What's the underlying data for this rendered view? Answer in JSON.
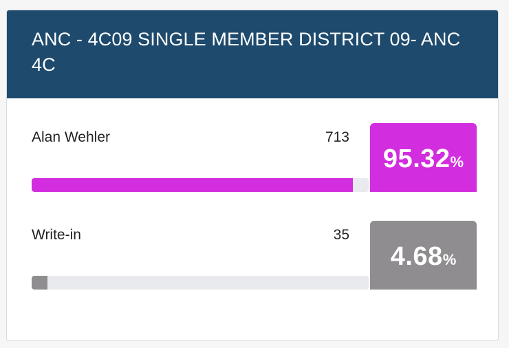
{
  "race": {
    "title": "ANC - 4C09 SINGLE MEMBER DISTRICT 09- ANC 4C"
  },
  "candidates": [
    {
      "name": "Alan Wehler",
      "votes": "713",
      "percent": "95.32",
      "percent_sign": "%",
      "bar_fraction": 0.9532,
      "color": "#d22ddf"
    },
    {
      "name": "Write-in",
      "votes": "35",
      "percent": "4.68",
      "percent_sign": "%",
      "bar_fraction": 0.0468,
      "color": "#8f8d8f"
    }
  ]
}
